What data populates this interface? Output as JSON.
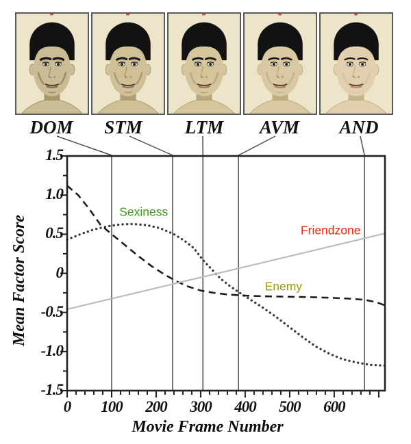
{
  "figure": {
    "faces": [
      {
        "label": "DOM",
        "frame": 100,
        "skin": "#cabc94",
        "skin_dark": "#a8966c",
        "brow": 3.6,
        "shadow": 0.45,
        "lip": "#7d5a44",
        "eye_ry": 2.6,
        "face_rx": 28.5
      },
      {
        "label": "STM",
        "frame": 237,
        "skin": "#d0c098",
        "skin_dark": "#b19f73",
        "brow": 3.3,
        "shadow": 0.34,
        "lip": "#87604a",
        "eye_ry": 2.7,
        "face_rx": 28.8
      },
      {
        "label": "LTM",
        "frame": 305,
        "skin": "#d5c59d",
        "skin_dark": "#b9a77b",
        "brow": 3.0,
        "shadow": 0.25,
        "lip": "#92684f",
        "eye_ry": 2.8,
        "face_rx": 29.2
      },
      {
        "label": "AVM",
        "frame": 385,
        "skin": "#d9c9a2",
        "skin_dark": "#bfad81",
        "brow": 2.8,
        "shadow": 0.16,
        "lip": "#a06e55",
        "eye_ry": 2.95,
        "face_rx": 29.6
      },
      {
        "label": "AND",
        "frame": 668,
        "skin": "#e1cfae",
        "skin_dark": "#c7b48d",
        "brow": 2.4,
        "shadow": 0.08,
        "lip": "#b5705a",
        "eye_ry": 3.15,
        "face_rx": 30
      }
    ],
    "red_mark_color": "#d94f3f",
    "box_border_color": "#58595b",
    "box_bg_color": "#ece5c9"
  },
  "chart_data": {
    "type": "line",
    "xlabel": "Movie Frame Number",
    "ylabel": "Mean Factor Score",
    "xlim": [
      0,
      714
    ],
    "ylim": [
      -1.5,
      1.5
    ],
    "x_ticks": [
      0,
      100,
      200,
      300,
      400,
      500,
      600
    ],
    "x_tick_labels": [
      "0",
      "100",
      "200",
      "300",
      "400",
      "500",
      "600"
    ],
    "y_ticks": [
      1.5,
      1.0,
      0.5,
      0,
      -0.5,
      -1.0,
      -1.5
    ],
    "y_tick_labels": [
      "1.5",
      "1.0",
      "0.5",
      "0",
      "-0.5",
      "-1.0",
      "-1.5"
    ],
    "minor_x_step": 20,
    "minor_y_step": 0.25,
    "grid": false,
    "frame_color": "#222222",
    "morph_marker_frames": [
      100,
      237,
      305,
      385,
      668
    ],
    "marker_line_color": "#4d4d4d",
    "series": [
      {
        "name": "Sexiness",
        "style": "dotted",
        "color": "#3a3a3a",
        "label_color": "#3f9b15",
        "label_at": [
          172,
          0.78
        ],
        "points": [
          [
            0,
            0.43
          ],
          [
            30,
            0.5
          ],
          [
            60,
            0.56
          ],
          [
            90,
            0.6
          ],
          [
            120,
            0.625
          ],
          [
            150,
            0.63
          ],
          [
            180,
            0.615
          ],
          [
            210,
            0.575
          ],
          [
            240,
            0.5
          ],
          [
            265,
            0.41
          ],
          [
            285,
            0.32
          ],
          [
            305,
            0.17
          ],
          [
            325,
            0.05
          ],
          [
            345,
            -0.07
          ],
          [
            365,
            -0.16
          ],
          [
            385,
            -0.24
          ],
          [
            410,
            -0.33
          ],
          [
            440,
            -0.44
          ],
          [
            470,
            -0.56
          ],
          [
            500,
            -0.69
          ],
          [
            530,
            -0.82
          ],
          [
            560,
            -0.94
          ],
          [
            590,
            -1.03
          ],
          [
            620,
            -1.1
          ],
          [
            650,
            -1.14
          ],
          [
            680,
            -1.17
          ],
          [
            714,
            -1.18
          ]
        ]
      },
      {
        "name": "Enemy",
        "style": "dashed",
        "color": "#1c1c1c",
        "label_color": "#9c9c07",
        "label_at": [
          486,
          -0.17
        ],
        "points": [
          [
            0,
            1.12
          ],
          [
            25,
            1.0
          ],
          [
            50,
            0.82
          ],
          [
            75,
            0.62
          ],
          [
            100,
            0.5
          ],
          [
            130,
            0.36
          ],
          [
            160,
            0.22
          ],
          [
            190,
            0.09
          ],
          [
            220,
            -0.02
          ],
          [
            245,
            -0.1
          ],
          [
            270,
            -0.165
          ],
          [
            300,
            -0.22
          ],
          [
            330,
            -0.25
          ],
          [
            360,
            -0.27
          ],
          [
            400,
            -0.285
          ],
          [
            450,
            -0.295
          ],
          [
            500,
            -0.3
          ],
          [
            550,
            -0.305
          ],
          [
            600,
            -0.315
          ],
          [
            640,
            -0.325
          ],
          [
            670,
            -0.34
          ],
          [
            695,
            -0.37
          ],
          [
            714,
            -0.41
          ]
        ]
      },
      {
        "name": "Friendzone",
        "style": "solid",
        "color": "#bcbcbc",
        "label_color": "#f82506",
        "label_at": [
          592,
          0.55
        ],
        "points": [
          [
            0,
            -0.46
          ],
          [
            714,
            0.51
          ]
        ]
      }
    ]
  }
}
